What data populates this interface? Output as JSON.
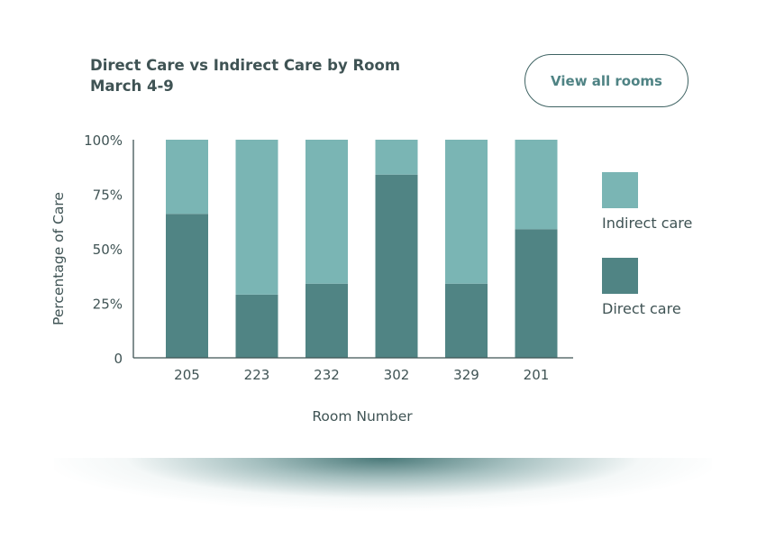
{
  "header": {
    "title_line1": "Direct Care vs Indirect Care by Room",
    "title_line2": "March 4-9",
    "view_all_label": "View all rooms"
  },
  "colors": {
    "direct": "#508484",
    "indirect": "#7ab5b4",
    "axis": "#3f5354"
  },
  "chart_data": {
    "type": "bar",
    "stacked": true,
    "title": "Direct Care vs Indirect Care by Room",
    "subtitle": "March 4-9",
    "xlabel": "Room Number",
    "ylabel": "Percentage of Care",
    "ylim": [
      0,
      100
    ],
    "yticks": [
      {
        "value": 0,
        "label": "0"
      },
      {
        "value": 25,
        "label": "25%"
      },
      {
        "value": 50,
        "label": "50%"
      },
      {
        "value": 75,
        "label": "75%"
      },
      {
        "value": 100,
        "label": "100%"
      }
    ],
    "categories": [
      "205",
      "223",
      "232",
      "302",
      "329",
      "201"
    ],
    "series": [
      {
        "name": "Direct care",
        "values": [
          66,
          29,
          34,
          84,
          34,
          59
        ]
      },
      {
        "name": "Indirect care",
        "values": [
          34,
          71,
          66,
          16,
          66,
          41
        ]
      }
    ],
    "legend": {
      "position": "right",
      "items": [
        {
          "label": "Indirect care"
        },
        {
          "label": "Direct care"
        }
      ]
    },
    "grid": false
  }
}
